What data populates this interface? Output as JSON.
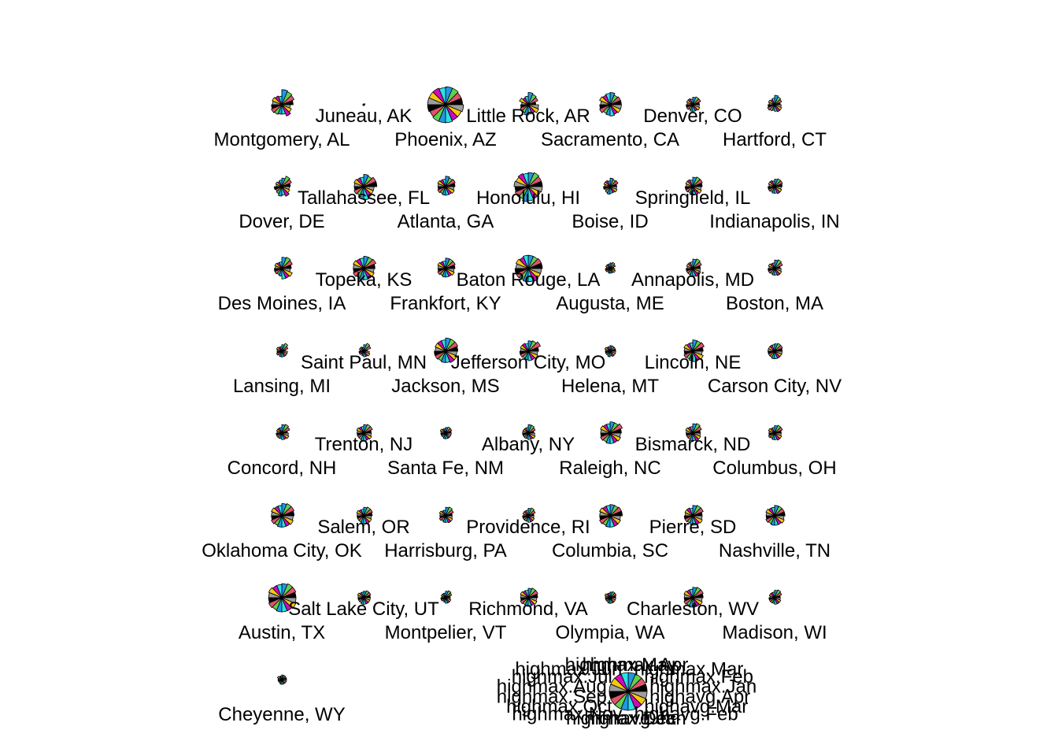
{
  "chart_data": {
    "type": "star-segment",
    "layout": "grid",
    "columns": 7,
    "key_label_order": [
      "highmax.Jan",
      "highmax.Feb",
      "highmax.Mar",
      "highmax.Apr",
      "highmax.May",
      "highmax.Jun",
      "highmax.Jul",
      "highmax.Aug",
      "highmax.Sep",
      "highmax.Oct",
      "highmax.Nov",
      "highmax.Dec",
      "highavg.Jan",
      "highavg.Feb",
      "highavg.Mar",
      "highavg.Apr"
    ],
    "segment_colors": [
      "#000000",
      "#DF536B",
      "#61D04F",
      "#2297E6",
      "#28E2E5",
      "#CD0BBC",
      "#F5C710",
      "#9E9E9E",
      "#000000",
      "#DF536B",
      "#61D04F",
      "#2297E6",
      "#28E2E5",
      "#CD0BBC",
      "#F5C710",
      "#9E9E9E"
    ],
    "key": {
      "name": "key",
      "values": [
        1,
        1,
        1,
        1,
        1,
        1,
        1,
        1,
        1,
        1,
        1,
        1,
        1,
        1,
        1,
        1
      ]
    },
    "stars": [
      {
        "name": "Montgomery, AL",
        "values": [
          0.6,
          0.7,
          0.75,
          0.8,
          0.45,
          0.5,
          0.55,
          0.5,
          0.55,
          0.6,
          0.55,
          0.5,
          0.5,
          0.65,
          0.55,
          0.45
        ]
      },
      {
        "name": "Juneau, AK",
        "values": [
          0.05,
          0.08,
          0.05,
          0.03,
          0.04,
          0.03,
          0.05,
          0.04,
          0.03,
          0.05,
          0.04,
          0.03,
          0.04,
          0.05,
          0.03,
          0.04
        ]
      },
      {
        "name": "Phoenix, AZ",
        "values": [
          0.9,
          0.9,
          0.95,
          0.95,
          0.9,
          0.95,
          0.95,
          0.95,
          0.95,
          0.9,
          0.95,
          0.95,
          0.95,
          0.9,
          0.9,
          0.95
        ]
      },
      {
        "name": "Little Rock, AR",
        "values": [
          0.4,
          0.55,
          0.6,
          0.65,
          0.45,
          0.4,
          0.5,
          0.35,
          0.4,
          0.45,
          0.45,
          0.55,
          0.5,
          0.5,
          0.6,
          0.55
        ]
      },
      {
        "name": "Sacramento, CA",
        "values": [
          0.6,
          0.6,
          0.55,
          0.65,
          0.6,
          0.55,
          0.6,
          0.5,
          0.55,
          0.6,
          0.5,
          0.55,
          0.6,
          0.55,
          0.6,
          0.6
        ]
      },
      {
        "name": "Denver, CO",
        "values": [
          0.35,
          0.45,
          0.45,
          0.4,
          0.3,
          0.35,
          0.35,
          0.3,
          0.35,
          0.35,
          0.3,
          0.35,
          0.35,
          0.35,
          0.4,
          0.35
        ]
      },
      {
        "name": "Hartford, CT",
        "values": [
          0.3,
          0.4,
          0.45,
          0.5,
          0.35,
          0.3,
          0.35,
          0.3,
          0.35,
          0.4,
          0.35,
          0.3,
          0.35,
          0.4,
          0.4,
          0.35
        ]
      },
      {
        "name": "Dover, DE",
        "values": [
          0.45,
          0.55,
          0.6,
          0.45,
          0.35,
          0.3,
          0.35,
          0.3,
          0.4,
          0.35,
          0.4,
          0.5,
          0.45,
          0.55,
          0.45,
          0.4
        ]
      },
      {
        "name": "Tallahassee, FL",
        "values": [
          0.7,
          0.7,
          0.6,
          0.65,
          0.5,
          0.5,
          0.55,
          0.5,
          0.5,
          0.55,
          0.5,
          0.55,
          0.7,
          0.6,
          0.55,
          0.55
        ]
      },
      {
        "name": "Atlanta, GA",
        "values": [
          0.5,
          0.55,
          0.5,
          0.55,
          0.4,
          0.4,
          0.45,
          0.4,
          0.4,
          0.45,
          0.4,
          0.45,
          0.45,
          0.45,
          0.5,
          0.45
        ]
      },
      {
        "name": "Honolulu, HI",
        "values": [
          0.75,
          0.75,
          0.8,
          0.75,
          0.7,
          0.75,
          0.7,
          0.75,
          0.7,
          0.75,
          0.7,
          0.8,
          0.75,
          0.7,
          0.7,
          0.75
        ]
      },
      {
        "name": "Boise, ID",
        "values": [
          0.35,
          0.45,
          0.4,
          0.45,
          0.3,
          0.35,
          0.35,
          0.3,
          0.35,
          0.3,
          0.35,
          0.4,
          0.35,
          0.35,
          0.4,
          0.35
        ]
      },
      {
        "name": "Springfield, IL",
        "values": [
          0.5,
          0.55,
          0.55,
          0.5,
          0.35,
          0.4,
          0.4,
          0.35,
          0.4,
          0.4,
          0.35,
          0.4,
          0.45,
          0.45,
          0.5,
          0.45
        ]
      },
      {
        "name": "Indianapolis, IN",
        "values": [
          0.4,
          0.45,
          0.45,
          0.4,
          0.3,
          0.35,
          0.35,
          0.3,
          0.35,
          0.35,
          0.3,
          0.35,
          0.35,
          0.4,
          0.4,
          0.35
        ]
      },
      {
        "name": "Des Moines, IA",
        "values": [
          0.5,
          0.6,
          0.65,
          0.6,
          0.35,
          0.35,
          0.4,
          0.35,
          0.4,
          0.4,
          0.35,
          0.4,
          0.55,
          0.55,
          0.6,
          0.45
        ]
      },
      {
        "name": "Topeka, KS",
        "values": [
          0.6,
          0.7,
          0.65,
          0.65,
          0.55,
          0.55,
          0.6,
          0.55,
          0.55,
          0.6,
          0.55,
          0.6,
          0.6,
          0.6,
          0.6,
          0.55
        ]
      },
      {
        "name": "Frankfort, KY",
        "values": [
          0.5,
          0.55,
          0.55,
          0.55,
          0.4,
          0.4,
          0.45,
          0.4,
          0.4,
          0.45,
          0.4,
          0.45,
          0.45,
          0.45,
          0.5,
          0.45
        ]
      },
      {
        "name": "Baton Rouge, LA",
        "values": [
          0.75,
          0.75,
          0.7,
          0.7,
          0.7,
          0.65,
          0.7,
          0.65,
          0.7,
          0.7,
          0.65,
          0.7,
          0.7,
          0.75,
          0.7,
          0.7
        ]
      },
      {
        "name": "Augusta, ME",
        "values": [
          0.2,
          0.3,
          0.35,
          0.3,
          0.25,
          0.25,
          0.25,
          0.2,
          0.25,
          0.25,
          0.2,
          0.25,
          0.25,
          0.25,
          0.3,
          0.25
        ]
      },
      {
        "name": "Annapolis, MD",
        "values": [
          0.4,
          0.5,
          0.55,
          0.5,
          0.35,
          0.35,
          0.35,
          0.3,
          0.35,
          0.35,
          0.35,
          0.4,
          0.4,
          0.45,
          0.45,
          0.4
        ]
      },
      {
        "name": "Boston, MA",
        "values": [
          0.3,
          0.45,
          0.5,
          0.45,
          0.3,
          0.3,
          0.35,
          0.3,
          0.35,
          0.35,
          0.3,
          0.35,
          0.35,
          0.4,
          0.4,
          0.35
        ]
      },
      {
        "name": "Lansing, MI",
        "values": [
          0.2,
          0.35,
          0.45,
          0.35,
          0.25,
          0.25,
          0.3,
          0.25,
          0.25,
          0.3,
          0.25,
          0.3,
          0.3,
          0.3,
          0.3,
          0.3
        ]
      },
      {
        "name": "Saint Paul, MN",
        "values": [
          0.2,
          0.4,
          0.45,
          0.35,
          0.2,
          0.25,
          0.25,
          0.2,
          0.25,
          0.25,
          0.2,
          0.25,
          0.3,
          0.3,
          0.35,
          0.3
        ]
      },
      {
        "name": "Jackson, MS",
        "values": [
          0.65,
          0.7,
          0.7,
          0.7,
          0.6,
          0.6,
          0.6,
          0.55,
          0.6,
          0.6,
          0.55,
          0.6,
          0.6,
          0.65,
          0.65,
          0.6
        ]
      },
      {
        "name": "Jefferson City, MO",
        "values": [
          0.55,
          0.7,
          0.6,
          0.55,
          0.4,
          0.45,
          0.45,
          0.4,
          0.45,
          0.45,
          0.4,
          0.45,
          0.5,
          0.5,
          0.55,
          0.5
        ]
      },
      {
        "name": "Helena, MT",
        "values": [
          0.3,
          0.3,
          0.3,
          0.3,
          0.25,
          0.25,
          0.3,
          0.25,
          0.25,
          0.25,
          0.25,
          0.3,
          0.25,
          0.3,
          0.3,
          0.3
        ]
      },
      {
        "name": "Lincoln, NE",
        "values": [
          0.55,
          0.65,
          0.6,
          0.6,
          0.45,
          0.45,
          0.5,
          0.45,
          0.45,
          0.5,
          0.45,
          0.5,
          0.55,
          0.55,
          0.6,
          0.5
        ]
      },
      {
        "name": "Carson City, NV",
        "values": [
          0.4,
          0.45,
          0.45,
          0.4,
          0.35,
          0.35,
          0.35,
          0.35,
          0.35,
          0.35,
          0.35,
          0.4,
          0.4,
          0.4,
          0.4,
          0.4
        ]
      },
      {
        "name": "Concord, NH",
        "values": [
          0.3,
          0.45,
          0.5,
          0.45,
          0.3,
          0.3,
          0.3,
          0.25,
          0.3,
          0.3,
          0.3,
          0.3,
          0.35,
          0.35,
          0.4,
          0.35
        ]
      },
      {
        "name": "Trenton, NJ",
        "values": [
          0.4,
          0.5,
          0.5,
          0.45,
          0.35,
          0.35,
          0.4,
          0.35,
          0.35,
          0.35,
          0.35,
          0.4,
          0.4,
          0.4,
          0.45,
          0.4
        ]
      },
      {
        "name": "Santa Fe, NM",
        "values": [
          0.3,
          0.35,
          0.35,
          0.3,
          0.25,
          0.25,
          0.3,
          0.25,
          0.25,
          0.25,
          0.25,
          0.3,
          0.3,
          0.3,
          0.3,
          0.3
        ]
      },
      {
        "name": "Albany, NY",
        "values": [
          0.3,
          0.4,
          0.45,
          0.45,
          0.3,
          0.3,
          0.3,
          0.3,
          0.3,
          0.3,
          0.3,
          0.3,
          0.35,
          0.35,
          0.4,
          0.35
        ]
      },
      {
        "name": "Raleigh, NC",
        "values": [
          0.6,
          0.7,
          0.6,
          0.6,
          0.5,
          0.5,
          0.55,
          0.5,
          0.5,
          0.55,
          0.5,
          0.55,
          0.55,
          0.55,
          0.6,
          0.55
        ]
      },
      {
        "name": "Bismarck, ND",
        "values": [
          0.4,
          0.5,
          0.55,
          0.5,
          0.35,
          0.35,
          0.4,
          0.35,
          0.35,
          0.35,
          0.35,
          0.4,
          0.4,
          0.45,
          0.45,
          0.4
        ]
      },
      {
        "name": "Columbus, OH",
        "values": [
          0.35,
          0.45,
          0.45,
          0.4,
          0.3,
          0.3,
          0.35,
          0.3,
          0.3,
          0.35,
          0.3,
          0.35,
          0.35,
          0.4,
          0.4,
          0.35
        ]
      },
      {
        "name": "Oklahoma City, OK",
        "values": [
          0.65,
          0.7,
          0.7,
          0.65,
          0.55,
          0.55,
          0.6,
          0.55,
          0.55,
          0.6,
          0.55,
          0.6,
          0.6,
          0.6,
          0.65,
          0.6
        ]
      },
      {
        "name": "Salem, OR",
        "values": [
          0.45,
          0.5,
          0.5,
          0.45,
          0.35,
          0.35,
          0.4,
          0.35,
          0.35,
          0.35,
          0.35,
          0.4,
          0.4,
          0.45,
          0.45,
          0.4
        ]
      },
      {
        "name": "Harrisburg, PA",
        "values": [
          0.35,
          0.45,
          0.5,
          0.45,
          0.3,
          0.3,
          0.35,
          0.3,
          0.3,
          0.35,
          0.3,
          0.35,
          0.35,
          0.4,
          0.4,
          0.35
        ]
      },
      {
        "name": "Providence, RI",
        "values": [
          0.3,
          0.4,
          0.45,
          0.4,
          0.3,
          0.3,
          0.3,
          0.25,
          0.3,
          0.3,
          0.3,
          0.3,
          0.35,
          0.35,
          0.35,
          0.3
        ]
      },
      {
        "name": "Columbia, SC",
        "values": [
          0.65,
          0.65,
          0.6,
          0.6,
          0.55,
          0.55,
          0.6,
          0.55,
          0.55,
          0.6,
          0.55,
          0.6,
          0.6,
          0.6,
          0.6,
          0.55
        ]
      },
      {
        "name": "Pierre, SD",
        "values": [
          0.5,
          0.6,
          0.6,
          0.55,
          0.4,
          0.45,
          0.45,
          0.4,
          0.45,
          0.45,
          0.4,
          0.45,
          0.5,
          0.5,
          0.55,
          0.5
        ]
      },
      {
        "name": "Nashville, TN",
        "values": [
          0.55,
          0.55,
          0.55,
          0.55,
          0.45,
          0.45,
          0.5,
          0.45,
          0.45,
          0.5,
          0.45,
          0.5,
          0.5,
          0.5,
          0.55,
          0.5
        ]
      },
      {
        "name": "Austin, TX",
        "values": [
          0.75,
          0.8,
          0.8,
          0.75,
          0.7,
          0.7,
          0.75,
          0.7,
          0.7,
          0.75,
          0.7,
          0.75,
          0.75,
          0.75,
          0.8,
          0.75
        ]
      },
      {
        "name": "Salt Lake City, UT",
        "values": [
          0.35,
          0.4,
          0.4,
          0.35,
          0.3,
          0.3,
          0.35,
          0.3,
          0.3,
          0.3,
          0.3,
          0.35,
          0.35,
          0.35,
          0.35,
          0.35
        ]
      },
      {
        "name": "Montpelier, VT",
        "values": [
          0.25,
          0.35,
          0.4,
          0.35,
          0.25,
          0.25,
          0.25,
          0.2,
          0.25,
          0.25,
          0.2,
          0.25,
          0.3,
          0.3,
          0.3,
          0.25
        ]
      },
      {
        "name": "Richmond, VA",
        "values": [
          0.5,
          0.55,
          0.55,
          0.5,
          0.4,
          0.4,
          0.45,
          0.4,
          0.4,
          0.45,
          0.4,
          0.45,
          0.45,
          0.45,
          0.5,
          0.45
        ]
      },
      {
        "name": "Olympia, WA",
        "values": [
          0.3,
          0.35,
          0.35,
          0.3,
          0.25,
          0.25,
          0.3,
          0.25,
          0.25,
          0.25,
          0.25,
          0.3,
          0.3,
          0.3,
          0.3,
          0.3
        ]
      },
      {
        "name": "Charleston, WV",
        "values": [
          0.55,
          0.6,
          0.6,
          0.55,
          0.45,
          0.45,
          0.5,
          0.45,
          0.45,
          0.5,
          0.45,
          0.5,
          0.5,
          0.5,
          0.55,
          0.5
        ]
      },
      {
        "name": "Madison, WI",
        "values": [
          0.3,
          0.4,
          0.45,
          0.4,
          0.3,
          0.3,
          0.3,
          0.25,
          0.3,
          0.3,
          0.3,
          0.3,
          0.35,
          0.35,
          0.35,
          0.3
        ]
      },
      {
        "name": "Cheyenne, WY",
        "values": [
          0.25,
          0.25,
          0.25,
          0.25,
          0.2,
          0.2,
          0.25,
          0.2,
          0.2,
          0.2,
          0.2,
          0.25,
          0.25,
          0.25,
          0.25,
          0.25
        ]
      }
    ]
  }
}
